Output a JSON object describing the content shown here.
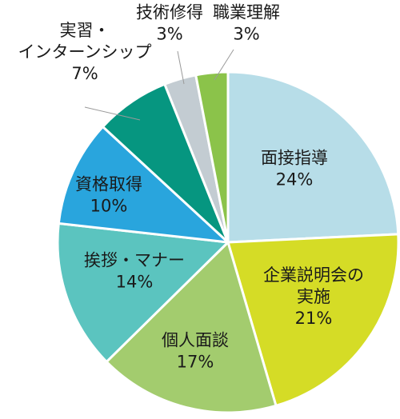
{
  "chart_data": {
    "type": "pie",
    "start_angle_deg": 0,
    "direction": "clockwise",
    "slices": [
      {
        "name_lines": [
          "面接指導"
        ],
        "pct_label": "24%",
        "value": 24,
        "color": "#b7dde8"
      },
      {
        "name_lines": [
          "企業説明会の",
          "実施"
        ],
        "pct_label": "21%",
        "value": 21,
        "color": "#d5dc26"
      },
      {
        "name_lines": [
          "個人面談"
        ],
        "pct_label": "17%",
        "value": 17,
        "color": "#a3cc6e"
      },
      {
        "name_lines": [
          "挨拶・マナー"
        ],
        "pct_label": "14%",
        "value": 14,
        "color": "#5bc4bf"
      },
      {
        "name_lines": [
          "資格取得"
        ],
        "pct_label": "10%",
        "value": 10,
        "color": "#29a5dd"
      },
      {
        "name_lines": [
          "実習・",
          "インターンシップ"
        ],
        "pct_label": "7%",
        "value": 7,
        "color": "#069680"
      },
      {
        "name_lines": [
          "技術修得"
        ],
        "pct_label": "3%",
        "value": 3,
        "color": "#c3ccd2"
      },
      {
        "name_lines": [
          "職業理解"
        ],
        "pct_label": "3%",
        "value": 3,
        "color": "#8bc34a"
      }
    ]
  }
}
